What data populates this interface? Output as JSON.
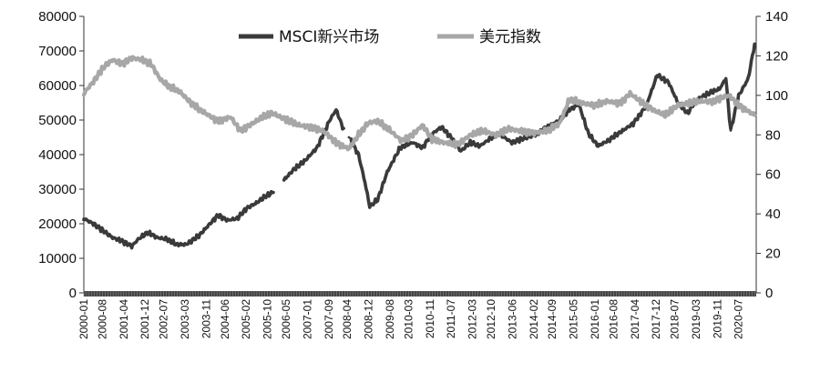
{
  "chart_data": {
    "type": "line",
    "title": "",
    "legend_position": "top",
    "grid": false,
    "y_left": {
      "ticks": [
        0,
        10000,
        20000,
        30000,
        40000,
        50000,
        60000,
        70000,
        80000
      ],
      "min": 0,
      "max": 80000
    },
    "y_right": {
      "ticks": [
        0,
        20,
        40,
        60,
        80,
        100,
        120,
        140
      ],
      "min": 0,
      "max": 140
    },
    "x_ticks": [
      "2000-01",
      "2000-08",
      "2001-04",
      "2001-12",
      "2002-07",
      "2003-03",
      "2003-11",
      "2004-06",
      "2005-02",
      "2005-10",
      "2006-05",
      "2007-01",
      "2007-09",
      "2008-04",
      "2008-12",
      "2009-08",
      "2010-03",
      "2010-11",
      "2011-07",
      "2012-03",
      "2012-10",
      "2013-06",
      "2014-02",
      "2014-09",
      "2015-05",
      "2016-01",
      "2016-08",
      "2017-04",
      "2017-12",
      "2018-07",
      "2019-03",
      "2019-11",
      "2020-07"
    ],
    "series": [
      {
        "name": "MSCI新兴市场",
        "axis": "left",
        "color": "#3a3a3a",
        "x": [
          2000.0,
          2000.3,
          2000.6,
          2000.9,
          2001.2,
          2001.5,
          2001.7,
          2002.0,
          2002.3,
          2002.6,
          2002.9,
          2003.2,
          2003.6,
          2003.9,
          2004.2,
          2004.5,
          2004.8,
          2005.1,
          2005.4,
          2005.7,
          2005.9,
          2006.3,
          2006.6,
          2006.9,
          2007.3,
          2007.7,
          2007.9,
          2008.1,
          2008.3,
          2008.6,
          2008.8,
          2008.95,
          2009.2,
          2009.5,
          2009.9,
          2010.3,
          2010.6,
          2010.9,
          2011.2,
          2011.5,
          2011.8,
          2012.1,
          2012.4,
          2012.7,
          2013.0,
          2013.4,
          2013.7,
          2014.1,
          2014.5,
          2014.9,
          2015.2,
          2015.5,
          2015.8,
          2016.1,
          2016.4,
          2016.8,
          2017.2,
          2017.6,
          2017.95,
          2018.3,
          2018.6,
          2018.9,
          2019.2,
          2019.5,
          2019.9,
          2020.1,
          2020.25,
          2020.5,
          2020.8,
          2021.0
        ],
        "values": [
          21500,
          20000,
          18000,
          16000,
          15000,
          13500,
          15500,
          17500,
          16000,
          15500,
          14000,
          14000,
          16500,
          19500,
          22500,
          21000,
          21500,
          24500,
          26000,
          28000,
          29000,
          33000,
          36000,
          38000,
          42000,
          50000,
          53000,
          48000,
          45000,
          40000,
          32000,
          25000,
          27000,
          35000,
          42000,
          43500,
          42000,
          46000,
          48000,
          45000,
          41000,
          43500,
          42500,
          44500,
          46000,
          43500,
          44500,
          45500,
          48000,
          50000,
          53000,
          54500,
          46000,
          42500,
          44000,
          46500,
          49000,
          54000,
          63000,
          61000,
          55000,
          52000,
          56000,
          57500,
          59000,
          62000,
          47000,
          57000,
          62000,
          72000
        ]
      },
      {
        "name": "美元指数",
        "axis": "right",
        "color": "#a7a7a7",
        "x": [
          2000.0,
          2000.3,
          2000.6,
          2000.9,
          2001.2,
          2001.5,
          2001.8,
          2002.1,
          2002.4,
          2002.7,
          2003.0,
          2003.3,
          2003.6,
          2003.9,
          2004.2,
          2004.6,
          2004.9,
          2005.2,
          2005.6,
          2005.9,
          2006.3,
          2006.7,
          2007.1,
          2007.5,
          2007.9,
          2008.3,
          2008.6,
          2008.9,
          2009.2,
          2009.6,
          2009.95,
          2010.3,
          2010.6,
          2010.9,
          2011.3,
          2011.7,
          2012.1,
          2012.5,
          2012.9,
          2013.3,
          2013.7,
          2014.1,
          2014.5,
          2014.9,
          2015.2,
          2015.6,
          2016.0,
          2016.4,
          2016.8,
          2017.1,
          2017.5,
          2017.9,
          2018.2,
          2018.6,
          2018.9,
          2019.3,
          2019.7,
          2020.0,
          2020.2,
          2020.5,
          2020.8,
          2021.0
        ],
        "values": [
          101,
          107,
          114,
          118,
          116,
          119,
          118,
          116,
          108,
          104,
          102,
          97,
          93,
          90,
          87,
          89,
          82,
          85,
          89,
          91,
          88,
          85,
          84,
          82,
          76,
          73,
          80,
          86,
          87,
          82,
          77,
          80,
          85,
          78,
          76,
          75,
          80,
          82,
          80,
          83,
          82,
          81,
          82,
          86,
          98,
          96,
          95,
          97,
          96,
          101,
          96,
          92,
          90,
          95,
          96,
          97,
          97,
          99,
          100,
          95,
          92,
          90
        ]
      }
    ]
  }
}
